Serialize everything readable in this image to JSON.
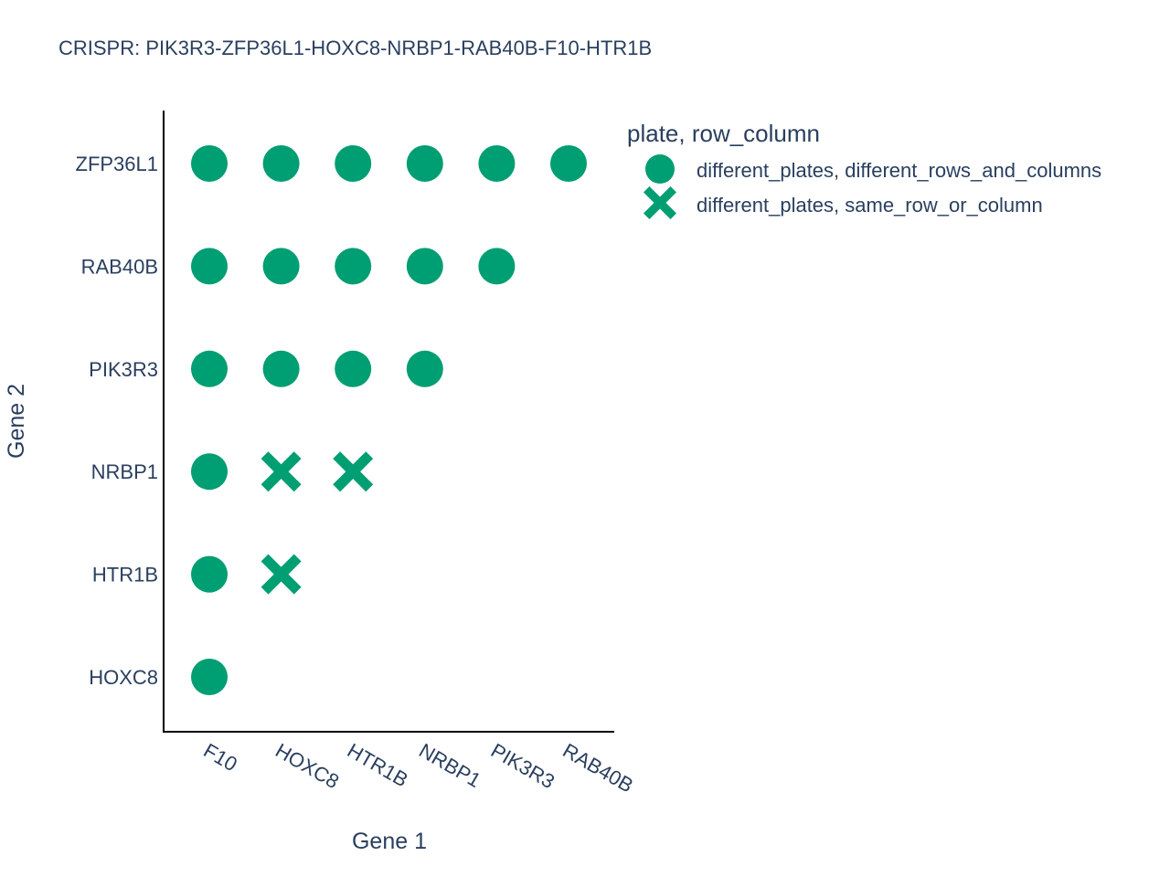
{
  "chart_data": {
    "type": "scatter",
    "title": "CRISPR: PIK3R3-ZFP36L1-HOXC8-NRBP1-RAB40B-F10-HTR1B",
    "xlabel": "Gene 1",
    "ylabel": "Gene 2",
    "x_categories": [
      "F10",
      "HOXC8",
      "HTR1B",
      "NRBP1",
      "PIK3R3",
      "RAB40B"
    ],
    "y_categories": [
      "HOXC8",
      "HTR1B",
      "NRBP1",
      "PIK3R3",
      "RAB40B",
      "ZFP36L1"
    ],
    "legend_title": "plate, row_column",
    "legend_placement": "top-right",
    "grid": false,
    "marker_color": "#009e73",
    "series": [
      {
        "name": "different_plates, different_rows_and_columns",
        "symbol": "circle",
        "points": [
          {
            "x": "F10",
            "y": "ZFP36L1"
          },
          {
            "x": "HOXC8",
            "y": "ZFP36L1"
          },
          {
            "x": "HTR1B",
            "y": "ZFP36L1"
          },
          {
            "x": "NRBP1",
            "y": "ZFP36L1"
          },
          {
            "x": "PIK3R3",
            "y": "ZFP36L1"
          },
          {
            "x": "RAB40B",
            "y": "ZFP36L1"
          },
          {
            "x": "F10",
            "y": "RAB40B"
          },
          {
            "x": "HOXC8",
            "y": "RAB40B"
          },
          {
            "x": "HTR1B",
            "y": "RAB40B"
          },
          {
            "x": "NRBP1",
            "y": "RAB40B"
          },
          {
            "x": "PIK3R3",
            "y": "RAB40B"
          },
          {
            "x": "F10",
            "y": "PIK3R3"
          },
          {
            "x": "HOXC8",
            "y": "PIK3R3"
          },
          {
            "x": "HTR1B",
            "y": "PIK3R3"
          },
          {
            "x": "NRBP1",
            "y": "PIK3R3"
          },
          {
            "x": "F10",
            "y": "NRBP1"
          },
          {
            "x": "F10",
            "y": "HTR1B"
          },
          {
            "x": "F10",
            "y": "HOXC8"
          }
        ]
      },
      {
        "name": "different_plates, same_row_or_column",
        "symbol": "x",
        "points": [
          {
            "x": "HOXC8",
            "y": "NRBP1"
          },
          {
            "x": "HTR1B",
            "y": "NRBP1"
          },
          {
            "x": "HOXC8",
            "y": "HTR1B"
          }
        ]
      }
    ]
  }
}
